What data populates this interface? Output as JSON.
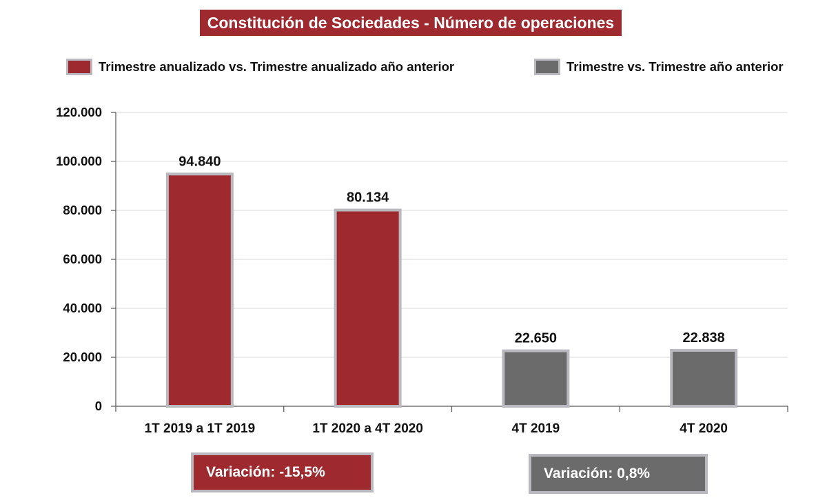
{
  "colors": {
    "red": "#9e2a2f",
    "gray": "#6b6b6b",
    "bar_border": "#b9b9bf",
    "grid": "#d9d9d9"
  },
  "legend": [
    {
      "label": "Trimestre anualizado vs. Trimestre anualizado año anterior",
      "color": "#9e2a2f"
    },
    {
      "label": "Trimestre vs. Trimestre año anterior",
      "color": "#6b6b6b"
    }
  ],
  "variations": [
    {
      "text": "Variación:  -15,5%"
    },
    {
      "text": "Variación: 0,8%"
    }
  ],
  "chart_data": {
    "type": "bar",
    "title": "Constitución de Sociedades - Número de operaciones",
    "xlabel": "",
    "ylabel": "",
    "categories": [
      "1T 2019 a 1T 2019",
      "1T 2020 a 4T 2020",
      "4T 2019",
      "4T 2020"
    ],
    "values": [
      94840,
      80134,
      22650,
      22838
    ],
    "value_labels": [
      "94.840",
      "80.134",
      "22.650",
      "22.838"
    ],
    "bar_colors": [
      "#9e2a2f",
      "#9e2a2f",
      "#6b6b6b",
      "#6b6b6b"
    ],
    "ylim": [
      0,
      120000
    ],
    "yticks": [
      0,
      20000,
      40000,
      60000,
      80000,
      100000,
      120000
    ],
    "ytick_labels": [
      "0",
      "20.000",
      "40.000",
      "60.000",
      "80.000",
      "100.000",
      "120.000"
    ],
    "grid": true,
    "legend_position": "top"
  }
}
